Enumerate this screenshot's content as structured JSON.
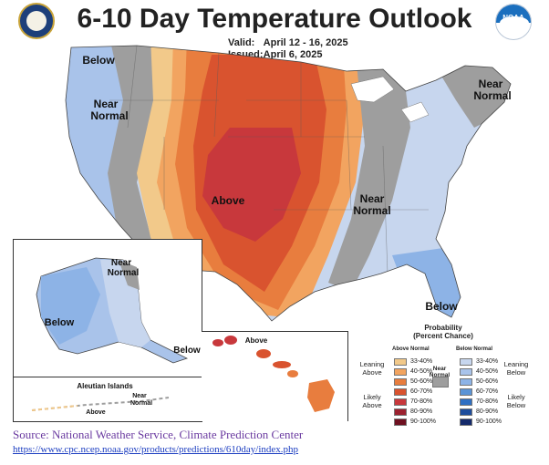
{
  "header": {
    "title": "6-10 Day Temperature Outlook",
    "valid_label": "Valid:",
    "valid_value": "April 12 - 16, 2025",
    "issued_label": "Issued:",
    "issued_value": "April 6, 2025"
  },
  "logos": {
    "left_seal": "department-seal",
    "right_logo": "NOAA"
  },
  "map_labels": {
    "below_nw": "Below",
    "near_normal_w": "Near\nNormal",
    "above": "Above",
    "near_normal_central": "Near\nNormal",
    "near_normal_ne": "Near\nNormal",
    "below_se": "Below"
  },
  "alaska": {
    "near_normal": "Near\nNormal",
    "below_w": "Below",
    "below_se": "Below"
  },
  "aleutian": {
    "title": "Aleutian Islands",
    "near_normal": "Near\nNormal",
    "above": "Above"
  },
  "hawaii": {
    "above": "Above"
  },
  "legend": {
    "title": "Probability\n(Percent Chance)",
    "above_normal": "Above Normal",
    "below_normal": "Below Normal",
    "near_normal": "Near\nNormal",
    "leaning_above": "Leaning\nAbove",
    "likely_above": "Likely\nAbove",
    "leaning_below": "Leaning\nBelow",
    "likely_below": "Likely\nBelow",
    "ranges": [
      "33-40%",
      "40-50%",
      "50-60%",
      "60-70%",
      "70-80%",
      "80-90%",
      "90-100%"
    ],
    "above_colors": [
      "#f2c98a",
      "#f2a460",
      "#e87d3e",
      "#d9532f",
      "#c8383c",
      "#9c2230",
      "#6e1020"
    ],
    "below_colors": [
      "#c7d6ee",
      "#a9c3ea",
      "#8db3e6",
      "#5b94d6",
      "#2f6fc2",
      "#1e4d9c",
      "#142a6b"
    ],
    "near_color": "#9e9e9e"
  },
  "source": {
    "line1": "Source: National Weather Service, Climate Prediction Center",
    "line2": "https://www.cpc.ncep.noaa.gov/products/predictions/610day/index.php"
  }
}
